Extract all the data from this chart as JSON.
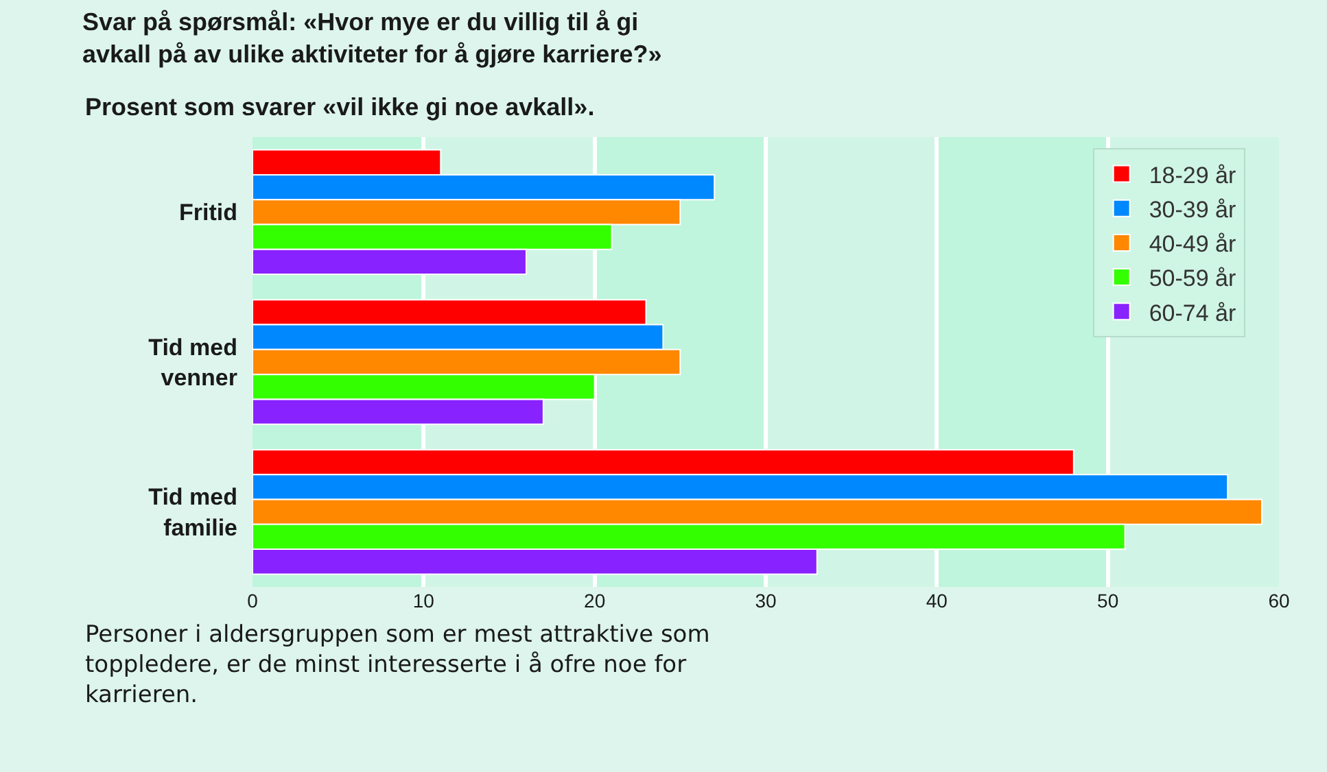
{
  "chart_data": {
    "type": "bar",
    "orientation": "horizontal",
    "title": "Svar på spørsmål: «Hvor mye er du villig til å gi avkall på av ulike aktiviteter for å gjøre karriere?»",
    "subtitle": "Prosent som svarer «vil ikke gi noe avkall».",
    "categories": [
      "Fritid",
      "Tid med venner",
      "Tid med familie"
    ],
    "series": [
      {
        "name": "18-29 år",
        "color": "#ff0000",
        "values": [
          11,
          23,
          48
        ]
      },
      {
        "name": "30-39 år",
        "color": "#0088ff",
        "values": [
          27,
          24,
          57
        ]
      },
      {
        "name": "40-49 år",
        "color": "#ff8800",
        "values": [
          25,
          25,
          59
        ]
      },
      {
        "name": "50-59 år",
        "color": "#33ff00",
        "values": [
          21,
          20,
          51
        ]
      },
      {
        "name": "60-74 år",
        "color": "#8822ff",
        "values": [
          16,
          17,
          33
        ]
      }
    ],
    "xlim": [
      0,
      60
    ],
    "xticks": [
      0,
      10,
      20,
      30,
      40,
      50,
      60
    ],
    "grid": "x",
    "legend": "top right",
    "bands": [
      {
        "axis": "x",
        "from": 0,
        "to": 10,
        "color": "#bef5dc"
      },
      {
        "axis": "x",
        "from": 20,
        "to": 30,
        "color": "#bef5dc"
      },
      {
        "axis": "x",
        "from": 40,
        "to": 50,
        "color": "#bef5dc"
      }
    ],
    "annotations": [
      "Personer i aldersgruppen som er mest attraktive som toppledere, er de minst interesserte i å ofre noe for karrieren."
    ]
  }
}
